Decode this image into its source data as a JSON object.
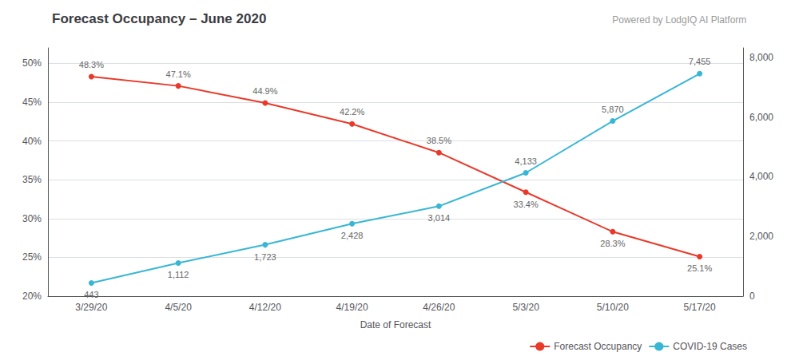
{
  "chart_data": {
    "type": "line",
    "title": "Forecast Occupancy – June 2020",
    "subtitle": "Powered by LodgIQ AI Platform",
    "x_label": "Date of Forecast",
    "categories": [
      "3/29/20",
      "4/5/20",
      "4/12/20",
      "4/19/20",
      "4/26/20",
      "5/3/20",
      "5/10/20",
      "5/17/20"
    ],
    "series": [
      {
        "name": "Forecast Occupancy",
        "color": "#e8392a",
        "marker": "circle",
        "values": [
          48.3,
          47.1,
          44.9,
          42.2,
          38.5,
          33.4,
          28.3,
          25.1
        ],
        "value_labels": [
          "48.3%",
          "47.1%",
          "44.9%",
          "42.2%",
          "38.5%",
          "33.4%",
          "28.3%",
          "25.1%"
        ]
      },
      {
        "name": "COVID-19 Cases",
        "color": "#38b6d4",
        "marker": "circle",
        "axis": "y2",
        "values": [
          443,
          1112,
          1723,
          2428,
          3014,
          4133,
          5870,
          7455
        ],
        "value_labels": [
          "443",
          "1,112",
          "1,723",
          "2,428",
          "3,014",
          "4,133",
          "5,870",
          "7,455"
        ]
      }
    ],
    "ylim": [
      20,
      52
    ],
    "yticks": [
      {
        "value": 20,
        "label": "20%"
      },
      {
        "value": 25,
        "label": "25%"
      },
      {
        "value": 30,
        "label": "30%"
      },
      {
        "value": 35,
        "label": "35%"
      },
      {
        "value": 40,
        "label": "40%"
      },
      {
        "value": 45,
        "label": "45%"
      },
      {
        "value": 50,
        "label": "50%"
      }
    ],
    "y2lim": [
      0,
      8320
    ],
    "y2ticks": [
      0,
      {
        "value": 2000,
        "label": "2,000"
      },
      {
        "value": 4000,
        "label": "4,000"
      },
      {
        "value": 6000,
        "label": "6,000"
      },
      {
        "value": 8000,
        "label": "8,000"
      }
    ],
    "grid": true,
    "legend": "lower right",
    "data_labels": true
  }
}
